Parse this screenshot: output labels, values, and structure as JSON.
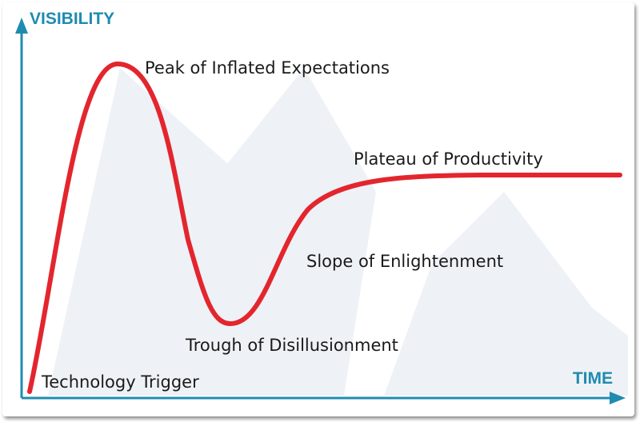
{
  "diagram": {
    "y_axis_label": "VISIBILITY",
    "x_axis_label": "TIME",
    "phases": [
      {
        "id": "technology-trigger",
        "label": "Technology Trigger"
      },
      {
        "id": "peak",
        "label": "Peak of Inflated Expectations"
      },
      {
        "id": "trough",
        "label": "Trough of Disillusionment"
      },
      {
        "id": "slope",
        "label": "Slope of Enlightenment"
      },
      {
        "id": "plateau",
        "label": "Plateau of Productivity"
      }
    ],
    "colors": {
      "curve": "#e3262e",
      "axis": "#1e8cb0",
      "background_shapes": "#eef2f6"
    }
  }
}
